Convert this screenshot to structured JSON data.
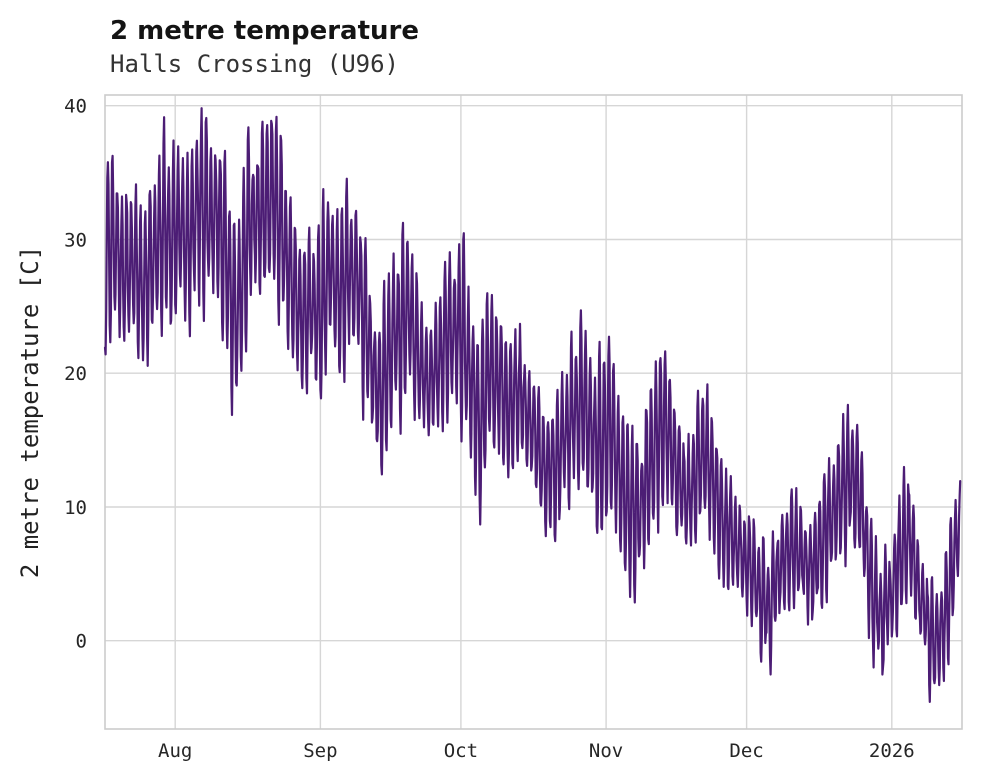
{
  "chart_data": {
    "type": "line",
    "title": "2 metre temperature",
    "subtitle": "Halls Crossing (U96)",
    "ylabel": "2 metre temperature [C]",
    "series_name": "2 metre temperature",
    "line_color": "#4c1d75",
    "background_color": "#ffffff",
    "grid_color": "#d6d6d6",
    "border_color": "#cccccc",
    "grid": true,
    "legend": "none",
    "ylim": [
      -6.6,
      40.8
    ],
    "y_ticks": [
      0,
      10,
      20,
      30,
      40
    ],
    "x_range_days": [
      0,
      183
    ],
    "x_end_day": 182.6,
    "x_ticks": [
      {
        "label": "Aug",
        "day": 15
      },
      {
        "label": "Sep",
        "day": 46
      },
      {
        "label": "Oct",
        "day": 76
      },
      {
        "label": "Nov",
        "day": 107
      },
      {
        "label": "Dec",
        "day": 137
      },
      {
        "label": "2026",
        "day": 168
      }
    ],
    "samples_per_day": 8,
    "envelope_keyframes": [
      [
        0,
        23,
        34.5
      ],
      [
        2,
        24,
        36
      ],
      [
        4,
        22,
        33
      ],
      [
        6,
        24,
        33.5
      ],
      [
        8,
        21,
        31
      ],
      [
        10,
        22,
        34
      ],
      [
        12,
        25,
        37
      ],
      [
        14,
        23,
        37
      ],
      [
        16,
        26,
        36
      ],
      [
        18,
        24,
        35
      ],
      [
        20,
        27,
        38.5
      ],
      [
        22,
        25,
        38
      ],
      [
        24,
        26,
        37.5
      ],
      [
        26,
        20,
        36
      ],
      [
        28,
        17,
        30
      ],
      [
        30,
        23,
        36
      ],
      [
        32,
        26,
        37.5
      ],
      [
        34,
        27,
        38
      ],
      [
        36,
        28,
        39
      ],
      [
        38,
        24,
        36
      ],
      [
        40,
        21,
        32
      ],
      [
        42,
        19,
        29
      ],
      [
        44,
        20,
        30
      ],
      [
        46,
        18,
        31
      ],
      [
        48,
        22,
        34
      ],
      [
        50,
        20,
        32
      ],
      [
        52,
        22,
        33.5
      ],
      [
        54,
        21,
        33
      ],
      [
        56,
        17,
        28
      ],
      [
        58,
        13,
        24
      ],
      [
        59,
        12.5,
        25
      ],
      [
        61,
        16,
        28
      ],
      [
        63,
        17,
        30
      ],
      [
        65,
        21,
        29
      ],
      [
        67,
        16,
        26
      ],
      [
        69,
        14,
        24
      ],
      [
        71,
        15,
        27
      ],
      [
        73,
        16,
        29
      ],
      [
        75,
        18,
        29
      ],
      [
        76,
        17,
        30.7
      ],
      [
        78,
        14,
        26
      ],
      [
        80,
        10.3,
        21
      ],
      [
        82,
        13,
        28
      ],
      [
        84,
        15,
        24
      ],
      [
        86,
        13,
        21
      ],
      [
        88,
        15,
        22.5
      ],
      [
        90,
        13,
        21
      ],
      [
        92,
        11,
        19.5
      ],
      [
        94,
        8,
        17
      ],
      [
        96,
        7.5,
        18
      ],
      [
        98,
        10,
        20.5
      ],
      [
        100,
        12,
        22
      ],
      [
        102,
        13,
        23
      ],
      [
        104,
        10,
        20
      ],
      [
        106,
        8,
        21
      ],
      [
        108,
        10,
        22.8
      ],
      [
        110,
        7,
        17
      ],
      [
        112,
        5,
        15
      ],
      [
        114,
        4.7,
        14
      ],
      [
        116,
        8,
        18
      ],
      [
        118,
        10,
        20.5
      ],
      [
        120,
        11,
        21
      ],
      [
        122,
        8,
        17
      ],
      [
        124,
        6,
        15.5
      ],
      [
        126,
        7,
        16.5
      ],
      [
        128,
        9,
        20.8
      ],
      [
        130,
        7,
        16
      ],
      [
        132,
        5,
        12
      ],
      [
        134,
        4,
        11.5
      ],
      [
        136,
        3,
        10.5
      ],
      [
        138,
        2,
        9
      ],
      [
        140,
        -0.5,
        7
      ],
      [
        142,
        -1.5,
        6.5
      ],
      [
        144,
        1,
        10
      ],
      [
        146,
        2,
        11.8
      ],
      [
        148,
        3,
        11
      ],
      [
        150,
        1,
        9
      ],
      [
        152,
        2,
        10.5
      ],
      [
        154,
        4,
        12.5
      ],
      [
        156,
        6,
        14
      ],
      [
        158,
        7,
        16.5
      ],
      [
        160,
        8,
        17
      ],
      [
        162,
        5,
        13
      ],
      [
        164,
        -1,
        7
      ],
      [
        166,
        -2.5,
        6
      ],
      [
        168,
        0,
        7
      ],
      [
        170,
        2,
        12
      ],
      [
        172,
        3,
        12.4
      ],
      [
        174,
        0,
        6.5
      ],
      [
        176,
        -3,
        5
      ],
      [
        178,
        -4.3,
        4
      ],
      [
        180,
        -1,
        7.5
      ],
      [
        182,
        4,
        11.5
      ],
      [
        183,
        5,
        12
      ]
    ]
  }
}
